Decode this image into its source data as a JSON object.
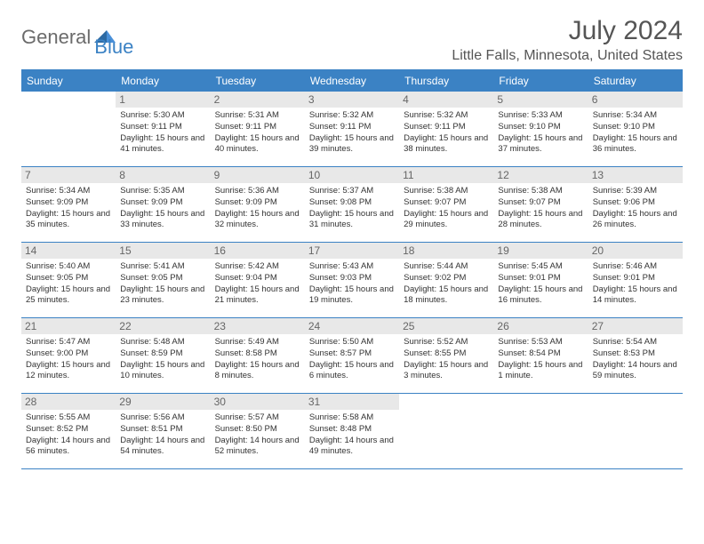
{
  "logo": {
    "general": "General",
    "blue": "Blue"
  },
  "title": "July 2024",
  "location": "Little Falls, Minnesota, United States",
  "colors": {
    "header_bg": "#3b82c4",
    "header_text": "#ffffff",
    "daynum_bg": "#e8e8e8",
    "text": "#333333",
    "border": "#3b82c4"
  },
  "typography": {
    "title_fontsize": 30,
    "location_fontsize": 16,
    "dayheader_fontsize": 12,
    "daynum_fontsize": 12,
    "dayinfo_fontsize": 9.5
  },
  "day_names": [
    "Sunday",
    "Monday",
    "Tuesday",
    "Wednesday",
    "Thursday",
    "Friday",
    "Saturday"
  ],
  "weeks": [
    [
      {
        "n": "",
        "sr": "",
        "ss": "",
        "dl": ""
      },
      {
        "n": "1",
        "sr": "5:30 AM",
        "ss": "9:11 PM",
        "dl": "15 hours and 41 minutes."
      },
      {
        "n": "2",
        "sr": "5:31 AM",
        "ss": "9:11 PM",
        "dl": "15 hours and 40 minutes."
      },
      {
        "n": "3",
        "sr": "5:32 AM",
        "ss": "9:11 PM",
        "dl": "15 hours and 39 minutes."
      },
      {
        "n": "4",
        "sr": "5:32 AM",
        "ss": "9:11 PM",
        "dl": "15 hours and 38 minutes."
      },
      {
        "n": "5",
        "sr": "5:33 AM",
        "ss": "9:10 PM",
        "dl": "15 hours and 37 minutes."
      },
      {
        "n": "6",
        "sr": "5:34 AM",
        "ss": "9:10 PM",
        "dl": "15 hours and 36 minutes."
      }
    ],
    [
      {
        "n": "7",
        "sr": "5:34 AM",
        "ss": "9:09 PM",
        "dl": "15 hours and 35 minutes."
      },
      {
        "n": "8",
        "sr": "5:35 AM",
        "ss": "9:09 PM",
        "dl": "15 hours and 33 minutes."
      },
      {
        "n": "9",
        "sr": "5:36 AM",
        "ss": "9:09 PM",
        "dl": "15 hours and 32 minutes."
      },
      {
        "n": "10",
        "sr": "5:37 AM",
        "ss": "9:08 PM",
        "dl": "15 hours and 31 minutes."
      },
      {
        "n": "11",
        "sr": "5:38 AM",
        "ss": "9:07 PM",
        "dl": "15 hours and 29 minutes."
      },
      {
        "n": "12",
        "sr": "5:38 AM",
        "ss": "9:07 PM",
        "dl": "15 hours and 28 minutes."
      },
      {
        "n": "13",
        "sr": "5:39 AM",
        "ss": "9:06 PM",
        "dl": "15 hours and 26 minutes."
      }
    ],
    [
      {
        "n": "14",
        "sr": "5:40 AM",
        "ss": "9:05 PM",
        "dl": "15 hours and 25 minutes."
      },
      {
        "n": "15",
        "sr": "5:41 AM",
        "ss": "9:05 PM",
        "dl": "15 hours and 23 minutes."
      },
      {
        "n": "16",
        "sr": "5:42 AM",
        "ss": "9:04 PM",
        "dl": "15 hours and 21 minutes."
      },
      {
        "n": "17",
        "sr": "5:43 AM",
        "ss": "9:03 PM",
        "dl": "15 hours and 19 minutes."
      },
      {
        "n": "18",
        "sr": "5:44 AM",
        "ss": "9:02 PM",
        "dl": "15 hours and 18 minutes."
      },
      {
        "n": "19",
        "sr": "5:45 AM",
        "ss": "9:01 PM",
        "dl": "15 hours and 16 minutes."
      },
      {
        "n": "20",
        "sr": "5:46 AM",
        "ss": "9:01 PM",
        "dl": "15 hours and 14 minutes."
      }
    ],
    [
      {
        "n": "21",
        "sr": "5:47 AM",
        "ss": "9:00 PM",
        "dl": "15 hours and 12 minutes."
      },
      {
        "n": "22",
        "sr": "5:48 AM",
        "ss": "8:59 PM",
        "dl": "15 hours and 10 minutes."
      },
      {
        "n": "23",
        "sr": "5:49 AM",
        "ss": "8:58 PM",
        "dl": "15 hours and 8 minutes."
      },
      {
        "n": "24",
        "sr": "5:50 AM",
        "ss": "8:57 PM",
        "dl": "15 hours and 6 minutes."
      },
      {
        "n": "25",
        "sr": "5:52 AM",
        "ss": "8:55 PM",
        "dl": "15 hours and 3 minutes."
      },
      {
        "n": "26",
        "sr": "5:53 AM",
        "ss": "8:54 PM",
        "dl": "15 hours and 1 minute."
      },
      {
        "n": "27",
        "sr": "5:54 AM",
        "ss": "8:53 PM",
        "dl": "14 hours and 59 minutes."
      }
    ],
    [
      {
        "n": "28",
        "sr": "5:55 AM",
        "ss": "8:52 PM",
        "dl": "14 hours and 56 minutes."
      },
      {
        "n": "29",
        "sr": "5:56 AM",
        "ss": "8:51 PM",
        "dl": "14 hours and 54 minutes."
      },
      {
        "n": "30",
        "sr": "5:57 AM",
        "ss": "8:50 PM",
        "dl": "14 hours and 52 minutes."
      },
      {
        "n": "31",
        "sr": "5:58 AM",
        "ss": "8:48 PM",
        "dl": "14 hours and 49 minutes."
      },
      {
        "n": "",
        "sr": "",
        "ss": "",
        "dl": ""
      },
      {
        "n": "",
        "sr": "",
        "ss": "",
        "dl": ""
      },
      {
        "n": "",
        "sr": "",
        "ss": "",
        "dl": ""
      }
    ]
  ],
  "labels": {
    "sunrise": "Sunrise:",
    "sunset": "Sunset:",
    "daylight": "Daylight:"
  }
}
